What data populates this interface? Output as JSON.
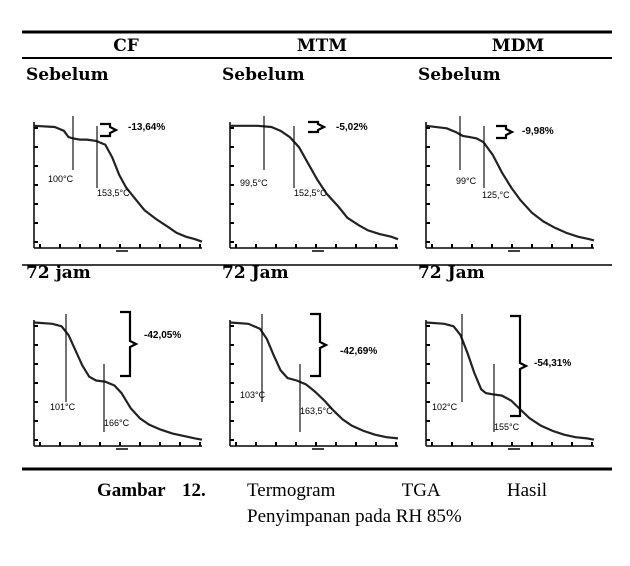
{
  "columns": [
    "CF",
    "MTM",
    "MDM"
  ],
  "caption": {
    "label": "Gambar",
    "number": "12.",
    "line1_words": [
      "Termogram",
      "TGA",
      "Hasil"
    ],
    "line2": "Penyimpanan pada RH 85%"
  },
  "chart_data": [
    {
      "type": "line",
      "panel_title": "Sebelum",
      "column": "CF",
      "annotations": [
        {
          "text": "100°C",
          "x": 100
        },
        {
          "text": "153,5°C",
          "x": 153.5
        }
      ],
      "mass_loss": "-13,64%",
      "curve": [
        [
          0,
          0.97
        ],
        [
          9,
          0.96
        ],
        [
          13,
          0.93
        ],
        [
          15,
          0.88
        ],
        [
          17,
          0.87
        ],
        [
          20,
          0.86
        ],
        [
          23,
          0.86
        ],
        [
          27,
          0.85
        ],
        [
          31,
          0.82
        ],
        [
          34,
          0.72
        ],
        [
          37,
          0.58
        ],
        [
          40,
          0.48
        ],
        [
          44,
          0.39
        ],
        [
          48,
          0.3
        ],
        [
          53,
          0.23
        ],
        [
          58,
          0.17
        ],
        [
          62,
          0.12
        ],
        [
          66,
          0.09
        ],
        [
          70,
          0.07
        ],
        [
          73,
          0.05
        ]
      ]
    },
    {
      "type": "line",
      "panel_title": "Sebelum",
      "column": "MTM",
      "annotations": [
        {
          "text": "99,5°C",
          "x": 99.5
        },
        {
          "text": "152,5°C",
          "x": 152.5
        }
      ],
      "mass_loss": "-5,02%",
      "curve": [
        [
          0,
          0.97
        ],
        [
          12,
          0.97
        ],
        [
          18,
          0.96
        ],
        [
          22,
          0.93
        ],
        [
          26,
          0.88
        ],
        [
          30,
          0.8
        ],
        [
          34,
          0.67
        ],
        [
          38,
          0.54
        ],
        [
          42,
          0.43
        ],
        [
          47,
          0.33
        ],
        [
          51,
          0.24
        ],
        [
          56,
          0.18
        ],
        [
          60,
          0.14
        ],
        [
          65,
          0.11
        ],
        [
          70,
          0.09
        ],
        [
          73,
          0.07
        ]
      ]
    },
    {
      "type": "line",
      "panel_title": "Sebelum",
      "column": "MDM",
      "annotations": [
        {
          "text": "99°C",
          "x": 99
        },
        {
          "text": "125,°C",
          "x": 125
        }
      ],
      "mass_loss": "-9,98%",
      "curve": [
        [
          0,
          0.97
        ],
        [
          9,
          0.95
        ],
        [
          13,
          0.92
        ],
        [
          16,
          0.89
        ],
        [
          19,
          0.88
        ],
        [
          22,
          0.87
        ],
        [
          25,
          0.84
        ],
        [
          29,
          0.74
        ],
        [
          33,
          0.6
        ],
        [
          37,
          0.48
        ],
        [
          41,
          0.38
        ],
        [
          46,
          0.28
        ],
        [
          51,
          0.21
        ],
        [
          56,
          0.16
        ],
        [
          61,
          0.12
        ],
        [
          66,
          0.09
        ],
        [
          71,
          0.07
        ],
        [
          73,
          0.06
        ]
      ]
    },
    {
      "type": "line",
      "panel_title": "72 jam",
      "column": "CF",
      "annotations": [
        {
          "text": "101°C",
          "x": 101
        },
        {
          "text": "166°C",
          "x": 166
        }
      ],
      "mass_loss": "-42,05%",
      "curve": [
        [
          0,
          0.98
        ],
        [
          8,
          0.97
        ],
        [
          12,
          0.95
        ],
        [
          15,
          0.88
        ],
        [
          18,
          0.76
        ],
        [
          21,
          0.64
        ],
        [
          24,
          0.55
        ],
        [
          27,
          0.52
        ],
        [
          31,
          0.51
        ],
        [
          35,
          0.48
        ],
        [
          38,
          0.42
        ],
        [
          42,
          0.3
        ],
        [
          46,
          0.22
        ],
        [
          50,
          0.17
        ],
        [
          55,
          0.13
        ],
        [
          60,
          0.1
        ],
        [
          65,
          0.08
        ],
        [
          70,
          0.06
        ],
        [
          73,
          0.05
        ]
      ]
    },
    {
      "type": "line",
      "panel_title": "72 Jam",
      "column": "MTM",
      "annotations": [
        {
          "text": "103°C",
          "x": 103
        },
        {
          "text": "163,5°C",
          "x": 163.5
        }
      ],
      "mass_loss": "-42,69%",
      "curve": [
        [
          0,
          0.98
        ],
        [
          8,
          0.97
        ],
        [
          13,
          0.93
        ],
        [
          16,
          0.85
        ],
        [
          19,
          0.72
        ],
        [
          22,
          0.6
        ],
        [
          25,
          0.54
        ],
        [
          29,
          0.52
        ],
        [
          33,
          0.49
        ],
        [
          37,
          0.43
        ],
        [
          41,
          0.36
        ],
        [
          45,
          0.28
        ],
        [
          49,
          0.21
        ],
        [
          53,
          0.16
        ],
        [
          58,
          0.12
        ],
        [
          63,
          0.09
        ],
        [
          68,
          0.07
        ],
        [
          73,
          0.06
        ]
      ]
    },
    {
      "type": "line",
      "panel_title": "72 Jam",
      "column": "MDM",
      "annotations": [
        {
          "text": "102°C",
          "x": 102
        },
        {
          "text": "155°C",
          "x": 155
        }
      ],
      "mass_loss": "-54,31%",
      "curve": [
        [
          0,
          0.98
        ],
        [
          8,
          0.97
        ],
        [
          12,
          0.95
        ],
        [
          15,
          0.88
        ],
        [
          18,
          0.74
        ],
        [
          21,
          0.58
        ],
        [
          24,
          0.45
        ],
        [
          26,
          0.42
        ],
        [
          29,
          0.41
        ],
        [
          33,
          0.4
        ],
        [
          37,
          0.36
        ],
        [
          41,
          0.29
        ],
        [
          45,
          0.22
        ],
        [
          50,
          0.16
        ],
        [
          55,
          0.12
        ],
        [
          60,
          0.09
        ],
        [
          65,
          0.07
        ],
        [
          70,
          0.06
        ],
        [
          73,
          0.05
        ]
      ]
    }
  ]
}
